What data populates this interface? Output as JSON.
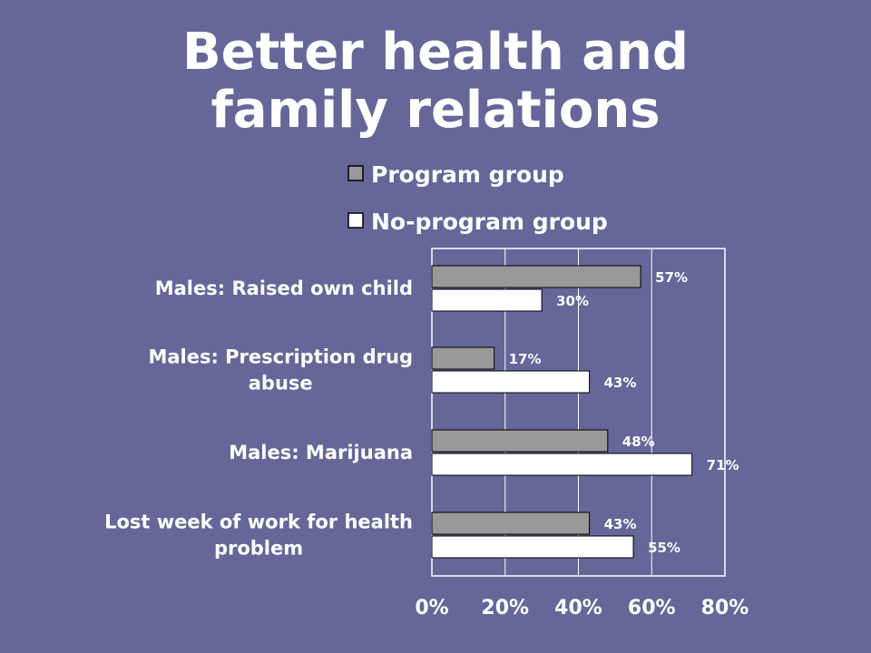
{
  "slide": {
    "title_line1": "Better health and",
    "title_line2": "family relations"
  },
  "colors": {
    "background": "#666699",
    "program_fill": "#999999",
    "no_program_fill": "#ffffff",
    "bar_stroke": "#000000",
    "text": "#ffffff"
  },
  "chart_data": {
    "type": "bar",
    "orientation": "horizontal",
    "title": "",
    "xlabel": "",
    "ylabel": "",
    "xlim": [
      0,
      80
    ],
    "xticks": [
      "0%",
      "20%",
      "40%",
      "60%",
      "80%"
    ],
    "grid": true,
    "legend_position": "top",
    "categories": [
      [
        "Males: Raised own child"
      ],
      [
        "Males: Prescription drug",
        "abuse"
      ],
      [
        "Males: Marijuana"
      ],
      [
        "Lost week of work for health",
        "problem"
      ]
    ],
    "series": [
      {
        "name": "Program group",
        "values": [
          57,
          17,
          48,
          43
        ],
        "labels": [
          "57%",
          "17%",
          "48%",
          "43%"
        ]
      },
      {
        "name": "No-program group",
        "values": [
          30,
          43,
          71,
          55
        ],
        "labels": [
          "30%",
          "43%",
          "71%",
          "55%"
        ]
      }
    ]
  }
}
